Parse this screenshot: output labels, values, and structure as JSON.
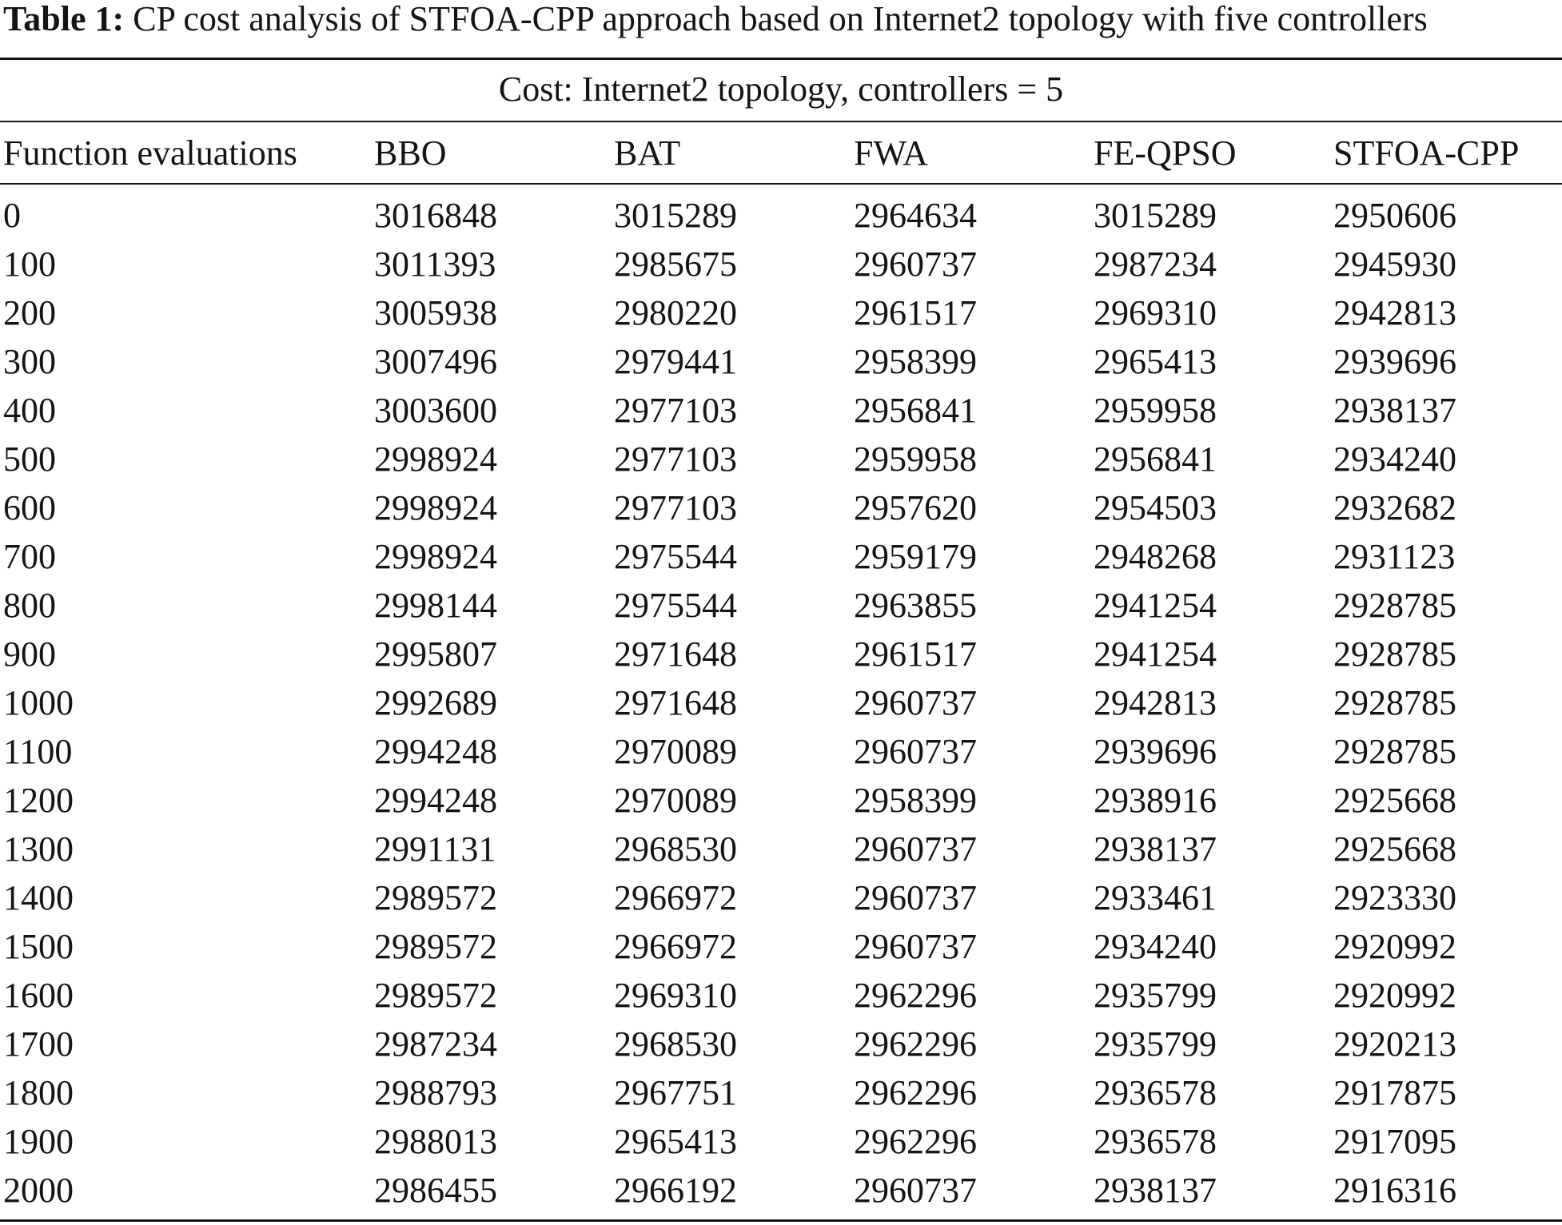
{
  "caption": {
    "label": "Table 1:",
    "text": "CP cost analysis of STFOA-CPP approach based on Internet2 topology with five controllers"
  },
  "table": {
    "group_title": "Cost: Internet2 topology, controllers = 5",
    "headers": [
      "Function evaluations",
      "BBO",
      "BAT",
      "FWA",
      "FE-QPSO",
      "STFOA-CPP"
    ],
    "rows": [
      [
        "0",
        "3016848",
        "3015289",
        "2964634",
        "3015289",
        "2950606"
      ],
      [
        "100",
        "3011393",
        "2985675",
        "2960737",
        "2987234",
        "2945930"
      ],
      [
        "200",
        "3005938",
        "2980220",
        "2961517",
        "2969310",
        "2942813"
      ],
      [
        "300",
        "3007496",
        "2979441",
        "2958399",
        "2965413",
        "2939696"
      ],
      [
        "400",
        "3003600",
        "2977103",
        "2956841",
        "2959958",
        "2938137"
      ],
      [
        "500",
        "2998924",
        "2977103",
        "2959958",
        "2956841",
        "2934240"
      ],
      [
        "600",
        "2998924",
        "2977103",
        "2957620",
        "2954503",
        "2932682"
      ],
      [
        "700",
        "2998924",
        "2975544",
        "2959179",
        "2948268",
        "2931123"
      ],
      [
        "800",
        "2998144",
        "2975544",
        "2963855",
        "2941254",
        "2928785"
      ],
      [
        "900",
        "2995807",
        "2971648",
        "2961517",
        "2941254",
        "2928785"
      ],
      [
        "1000",
        "2992689",
        "2971648",
        "2960737",
        "2942813",
        "2928785"
      ],
      [
        "1100",
        "2994248",
        "2970089",
        "2960737",
        "2939696",
        "2928785"
      ],
      [
        "1200",
        "2994248",
        "2970089",
        "2958399",
        "2938916",
        "2925668"
      ],
      [
        "1300",
        "2991131",
        "2968530",
        "2960737",
        "2938137",
        "2925668"
      ],
      [
        "1400",
        "2989572",
        "2966972",
        "2960737",
        "2933461",
        "2923330"
      ],
      [
        "1500",
        "2989572",
        "2966972",
        "2960737",
        "2934240",
        "2920992"
      ],
      [
        "1600",
        "2989572",
        "2969310",
        "2962296",
        "2935799",
        "2920992"
      ],
      [
        "1700",
        "2987234",
        "2968530",
        "2962296",
        "2935799",
        "2920213"
      ],
      [
        "1800",
        "2988793",
        "2967751",
        "2962296",
        "2936578",
        "2917875"
      ],
      [
        "1900",
        "2988013",
        "2965413",
        "2962296",
        "2936578",
        "2917095"
      ],
      [
        "2000",
        "2986455",
        "2966192",
        "2960737",
        "2938137",
        "2916316"
      ]
    ]
  }
}
